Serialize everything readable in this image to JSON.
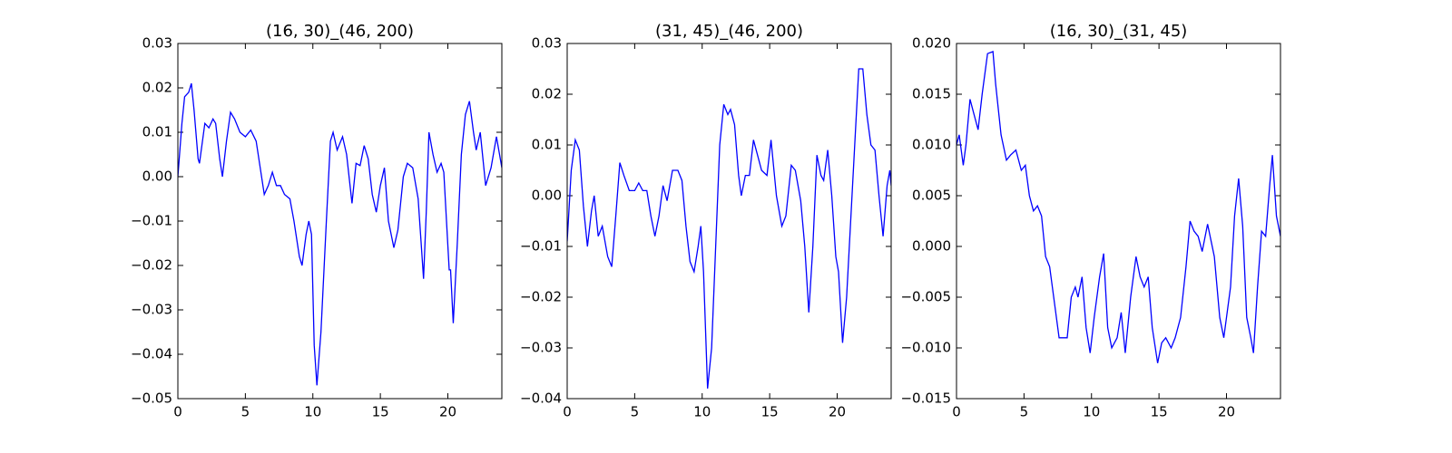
{
  "chart_data": [
    {
      "type": "line",
      "title": "(16, 30)_(46, 200)",
      "color": "#0000ff",
      "xlim": [
        0,
        24
      ],
      "ylim": [
        -0.05,
        0.03
      ],
      "xticks": [
        0,
        5,
        10,
        15,
        20
      ],
      "yticks": [
        {
          "value": -0.05,
          "label": "−0.05"
        },
        {
          "value": -0.04,
          "label": "−0.04"
        },
        {
          "value": -0.03,
          "label": "−0.03"
        },
        {
          "value": -0.02,
          "label": "−0.02"
        },
        {
          "value": -0.01,
          "label": "−0.01"
        },
        {
          "value": 0,
          "label": "0.00"
        },
        0.01,
        0.02,
        0.03
      ],
      "x": [
        0,
        0.3,
        0.5,
        0.8,
        1.0,
        1.2,
        1.5,
        1.6,
        2.0,
        2.3,
        2.6,
        2.8,
        3.1,
        3.3,
        3.6,
        3.9,
        4.2,
        4.6,
        5.0,
        5.4,
        5.8,
        6.1,
        6.4,
        6.7,
        7.0,
        7.3,
        7.6,
        7.9,
        8.3,
        8.6,
        9.0,
        9.2,
        9.5,
        9.7,
        9.9,
        10.1,
        10.3,
        10.6,
        11.0,
        11.3,
        11.5,
        11.8,
        12.2,
        12.5,
        12.9,
        13.2,
        13.5,
        13.8,
        14.1,
        14.4,
        14.7,
        15.0,
        15.3,
        15.6,
        16.0,
        16.3,
        16.7,
        17.0,
        17.4,
        17.8,
        18.2,
        18.4,
        18.6,
        18.9,
        19.2,
        19.5,
        19.7,
        19.9,
        20.1,
        20.2,
        20.4,
        20.7,
        21.0,
        21.3,
        21.6,
        21.9,
        22.1,
        22.4,
        22.8,
        23.2,
        23.6,
        24.0
      ],
      "values": [
        0.0,
        0.012,
        0.018,
        0.019,
        0.021,
        0.015,
        0.004,
        0.003,
        0.012,
        0.011,
        0.013,
        0.012,
        0.004,
        0.0,
        0.008,
        0.0145,
        0.013,
        0.01,
        0.009,
        0.0105,
        0.008,
        0.002,
        -0.004,
        -0.002,
        0.001,
        -0.002,
        -0.002,
        -0.004,
        -0.005,
        -0.01,
        -0.018,
        -0.02,
        -0.013,
        -0.01,
        -0.013,
        -0.038,
        -0.047,
        -0.035,
        -0.01,
        0.008,
        0.01,
        0.006,
        0.009,
        0.005,
        -0.006,
        0.003,
        0.0025,
        0.007,
        0.004,
        -0.004,
        -0.008,
        -0.002,
        0.002,
        -0.01,
        -0.016,
        -0.012,
        0.0,
        0.003,
        0.002,
        -0.005,
        -0.023,
        -0.008,
        0.01,
        0.005,
        0.001,
        0.003,
        0.001,
        -0.01,
        -0.021,
        -0.021,
        -0.033,
        -0.015,
        0.005,
        0.014,
        0.017,
        0.01,
        0.006,
        0.01,
        -0.002,
        0.002,
        0.009,
        0.002
      ]
    },
    {
      "type": "line",
      "title": "(31, 45)_(46, 200)",
      "color": "#0000ff",
      "xlim": [
        0,
        24
      ],
      "ylim": [
        -0.04,
        0.03
      ],
      "xticks": [
        0,
        5,
        10,
        15,
        20
      ],
      "yticks": [
        {
          "value": -0.04,
          "label": "−0.04"
        },
        {
          "value": -0.03,
          "label": "−0.03"
        },
        {
          "value": -0.02,
          "label": "−0.02"
        },
        {
          "value": -0.01,
          "label": "−0.01"
        },
        {
          "value": 0,
          "label": "0.00"
        },
        0.01,
        0.02,
        0.03
      ],
      "x": [
        0,
        0.3,
        0.6,
        0.9,
        1.2,
        1.5,
        1.8,
        2.0,
        2.3,
        2.6,
        3.0,
        3.3,
        3.6,
        3.9,
        4.2,
        4.6,
        5.0,
        5.3,
        5.6,
        5.9,
        6.2,
        6.5,
        6.8,
        7.1,
        7.4,
        7.8,
        8.2,
        8.5,
        8.8,
        9.1,
        9.4,
        9.7,
        9.9,
        10.1,
        10.4,
        10.7,
        11.0,
        11.3,
        11.6,
        11.9,
        12.1,
        12.4,
        12.7,
        12.9,
        13.2,
        13.5,
        13.8,
        14.1,
        14.4,
        14.8,
        15.1,
        15.5,
        15.9,
        16.2,
        16.6,
        16.9,
        17.3,
        17.6,
        17.9,
        18.2,
        18.5,
        18.8,
        19.0,
        19.3,
        19.6,
        19.9,
        20.1,
        20.4,
        20.7,
        21.0,
        21.3,
        21.6,
        21.9,
        22.2,
        22.5,
        22.8,
        23.1,
        23.4,
        23.7,
        23.9,
        24.0
      ],
      "values": [
        -0.009,
        0.005,
        0.011,
        0.009,
        -0.002,
        -0.01,
        -0.003,
        0.0,
        -0.008,
        -0.006,
        -0.012,
        -0.014,
        -0.004,
        0.0065,
        0.004,
        0.001,
        0.001,
        0.0025,
        0.001,
        0.001,
        -0.004,
        -0.008,
        -0.004,
        0.002,
        -0.001,
        0.005,
        0.005,
        0.003,
        -0.006,
        -0.013,
        -0.015,
        -0.01,
        -0.006,
        -0.015,
        -0.038,
        -0.03,
        -0.01,
        0.01,
        0.018,
        0.016,
        0.017,
        0.014,
        0.004,
        0.0,
        0.004,
        0.004,
        0.011,
        0.008,
        0.005,
        0.004,
        0.011,
        0.0,
        -0.006,
        -0.004,
        0.006,
        0.005,
        -0.001,
        -0.01,
        -0.023,
        -0.01,
        0.008,
        0.004,
        0.003,
        0.009,
        0.0,
        -0.012,
        -0.015,
        -0.029,
        -0.02,
        -0.005,
        0.01,
        0.025,
        0.025,
        0.016,
        0.01,
        0.009,
        0.0,
        -0.008,
        0.002,
        0.005,
        0.002
      ]
    },
    {
      "type": "line",
      "title": "(16, 30)_(31, 45)",
      "color": "#0000ff",
      "xlim": [
        0,
        24
      ],
      "ylim": [
        -0.015,
        0.02
      ],
      "xticks": [
        0,
        5,
        10,
        15,
        20
      ],
      "yticks": [
        {
          "value": -0.015,
          "label": "−0.015"
        },
        {
          "value": -0.01,
          "label": "−0.010"
        },
        {
          "value": -0.005,
          "label": "−0.005"
        },
        {
          "value": 0,
          "label": "0.000"
        },
        0.005,
        {
          "value": 0.01,
          "label": "0.010"
        },
        0.015,
        {
          "value": 0.02,
          "label": "0.020"
        }
      ],
      "x": [
        0,
        0.2,
        0.5,
        0.7,
        1.0,
        1.3,
        1.6,
        1.9,
        2.3,
        2.7,
        2.9,
        3.3,
        3.7,
        4.0,
        4.4,
        4.8,
        5.1,
        5.4,
        5.7,
        6.0,
        6.3,
        6.6,
        6.9,
        7.3,
        7.6,
        7.9,
        8.2,
        8.5,
        8.8,
        9.0,
        9.3,
        9.6,
        9.9,
        10.2,
        10.6,
        10.9,
        11.2,
        11.5,
        11.9,
        12.2,
        12.5,
        12.9,
        13.3,
        13.6,
        13.9,
        14.2,
        14.5,
        14.9,
        15.2,
        15.5,
        15.9,
        16.2,
        16.6,
        17.0,
        17.3,
        17.6,
        17.9,
        18.2,
        18.6,
        19.1,
        19.5,
        19.8,
        20.3,
        20.6,
        20.9,
        21.2,
        21.5,
        21.8,
        22.0,
        22.3,
        22.6,
        22.9,
        23.2,
        23.4,
        23.7,
        24.0
      ],
      "values": [
        0.01,
        0.011,
        0.008,
        0.01,
        0.0145,
        0.013,
        0.0115,
        0.015,
        0.019,
        0.0192,
        0.016,
        0.011,
        0.0085,
        0.009,
        0.0095,
        0.0075,
        0.008,
        0.005,
        0.0035,
        0.004,
        0.003,
        -0.001,
        -0.002,
        -0.006,
        -0.009,
        -0.009,
        -0.009,
        -0.005,
        -0.004,
        -0.005,
        -0.003,
        -0.008,
        -0.0105,
        -0.007,
        -0.003,
        -0.0007,
        -0.008,
        -0.01,
        -0.009,
        -0.0065,
        -0.0105,
        -0.005,
        -0.001,
        -0.003,
        -0.004,
        -0.003,
        -0.008,
        -0.0115,
        -0.0095,
        -0.009,
        -0.01,
        -0.009,
        -0.007,
        -0.002,
        0.0025,
        0.0015,
        0.001,
        -0.0005,
        0.0022,
        -0.001,
        -0.007,
        -0.009,
        -0.004,
        0.003,
        0.0067,
        0.002,
        -0.007,
        -0.009,
        -0.0105,
        -0.004,
        0.0015,
        0.001,
        0.006,
        0.009,
        0.003,
        0.001
      ]
    }
  ]
}
